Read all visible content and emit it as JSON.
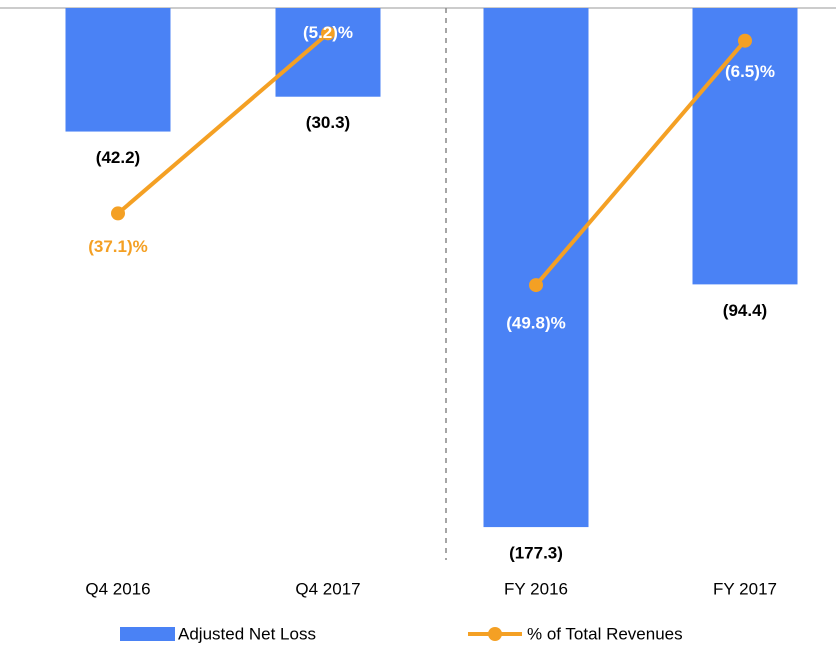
{
  "chart_data": {
    "type": "bar",
    "categories": [
      "Q4 2016",
      "Q4 2017",
      "FY 2016",
      "FY 2017"
    ],
    "series": [
      {
        "name": "Adjusted Net Loss",
        "color": "#4a82f5",
        "values": [
          -42.2,
          -30.3,
          -177.3,
          -94.4
        ],
        "value_labels": [
          "(42.2)",
          "(30.3)",
          "(177.3)",
          "(94.4)"
        ]
      },
      {
        "name": "% of Total Revenues",
        "type": "line",
        "axis": "y2",
        "color": "#f4a024",
        "values": [
          -37.1,
          -5.2,
          -49.8,
          -6.5
        ],
        "value_labels": [
          "(37.1)%",
          "(5.2)%",
          "(49.8)%",
          "(6.5)%"
        ]
      }
    ],
    "ylim": [
      -180,
      0
    ],
    "y2lim": [
      -90,
      0
    ]
  }
}
